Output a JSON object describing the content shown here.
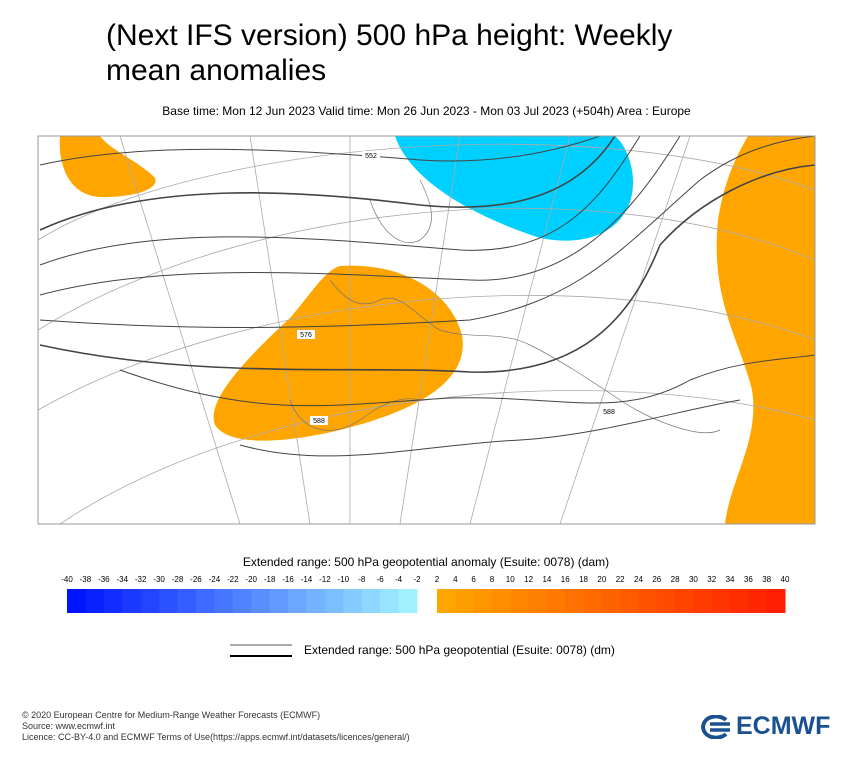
{
  "title": "(Next IFS version) 500 hPa height: Weekly mean anomalies",
  "subtitle": "Base time: Mon 12 Jun 2023 Valid time: Mon 26 Jun 2023 - Mon 03 Jul 2023 (+504h) Area : Europe",
  "map": {
    "contour_labels": [
      "552",
      "576",
      "588",
      "588"
    ]
  },
  "colorbar": {
    "title": "Extended range: 500 hPa geopotential anomaly (Esuite: 0078) (dam)",
    "negative_ticks": [
      -40,
      -38,
      -36,
      -34,
      -32,
      -30,
      -28,
      -26,
      -24,
      -22,
      -20,
      -18,
      -16,
      -14,
      -12,
      -10,
      -8,
      -6,
      -4,
      -2
    ],
    "positive_ticks": [
      2,
      4,
      6,
      8,
      10,
      12,
      14,
      16,
      18,
      20,
      22,
      24,
      26,
      28,
      30,
      32,
      34,
      36,
      38,
      40
    ]
  },
  "legend": {
    "label": "Extended range: 500 hPa geopotential (Esuite: 0078) (dm)"
  },
  "footer": {
    "copyright": "© 2020 European Centre for Medium-Range Weather Forecasts (ECMWF)",
    "source": "Source: www.ecmwf.int",
    "licence": "Licence: CC-BY-4.0 and ECMWF Terms of Use(https://apps.ecmwf.int/datasets/licences/general/)"
  },
  "logo": "ECMWF"
}
